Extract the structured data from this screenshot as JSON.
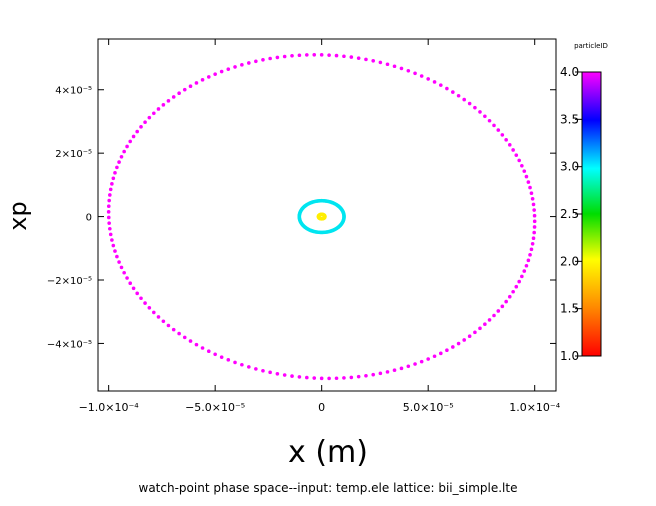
{
  "chart_data": {
    "type": "scatter",
    "xlabel": "x (m)",
    "ylabel": "xp",
    "xlim": [
      -0.000105,
      0.00011
    ],
    "ylim": [
      -5.5e-05,
      5.6e-05
    ],
    "x_ticks": [
      {
        "value": -0.0001,
        "label": "−1.0×10⁻⁴"
      },
      {
        "value": -5e-05,
        "label": "−5.0×10⁻⁵"
      },
      {
        "value": 0,
        "label": "0"
      },
      {
        "value": 5e-05,
        "label": "5.0×10⁻⁵"
      },
      {
        "value": 0.0001,
        "label": "1.0×10⁻⁴"
      }
    ],
    "y_ticks": [
      {
        "value": 4e-05,
        "label": "4×10⁻⁵"
      },
      {
        "value": 2e-05,
        "label": "2×10⁻⁵"
      },
      {
        "value": 0,
        "label": "0"
      },
      {
        "value": -2e-05,
        "label": "−2×10⁻⁵"
      },
      {
        "value": -4e-05,
        "label": "−4×10⁻⁵"
      }
    ],
    "caption": "watch-point phase space--input: temp.ele   lattice: bii_simple.lte",
    "colorbar": {
      "title": "particleID",
      "min": 1.0,
      "max": 4.0,
      "tick_labels": [
        "4.0",
        "3.5",
        "3.0",
        "2.5",
        "2.0",
        "1.5",
        "1.0"
      ]
    },
    "series": [
      {
        "particle_id": 4,
        "color": "#ff00ff",
        "shape": "ellipse",
        "center": [
          0.0,
          0.0
        ],
        "x_extent": [
          -0.0001,
          0.0001
        ],
        "xp_extent": [
          -5.1e-05,
          5.1e-05
        ],
        "tilt_xp_at_xmax": -1.5e-06,
        "points": 180
      },
      {
        "particle_id": 3,
        "color": "#00e5f0",
        "shape": "ellipse",
        "center": [
          0.0,
          0.0
        ],
        "x_extent": [
          -1.05e-05,
          1.05e-05
        ],
        "xp_extent": [
          -5e-06,
          5e-06
        ],
        "tilt_xp_at_xmax": 0,
        "points": 120
      },
      {
        "particle_id": 2,
        "color": "#ffee00",
        "shape": "ellipse",
        "center": [
          0.0,
          0.0
        ],
        "x_extent": [
          -1.5e-06,
          1.5e-06
        ],
        "xp_extent": [
          -7e-07,
          7e-07
        ],
        "tilt_xp_at_xmax": 0,
        "points": 40
      }
    ]
  }
}
